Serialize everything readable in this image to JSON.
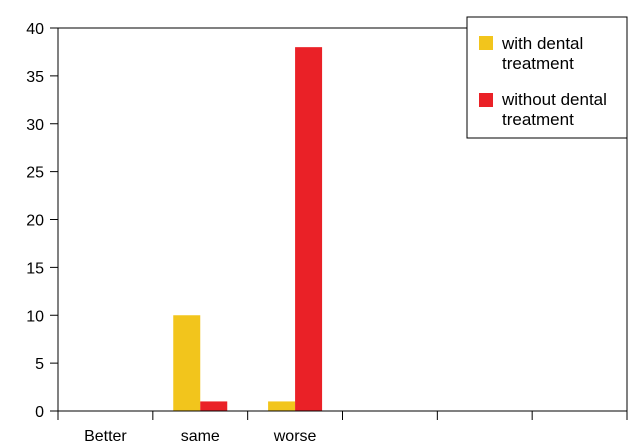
{
  "chart_data": {
    "type": "bar",
    "title": "",
    "xlabel": "",
    "ylabel": "",
    "categories": [
      "Better",
      "same",
      "worse",
      "",
      "",
      ""
    ],
    "series": [
      {
        "name": "with dental treatment",
        "values": [
          0,
          10,
          1,
          null,
          null,
          null
        ],
        "color": "#f2c51c"
      },
      {
        "name": "without dental treatment",
        "values": [
          0,
          1,
          38,
          null,
          null,
          null
        ],
        "color": "#ea2127"
      }
    ],
    "ylim": [
      0,
      40
    ],
    "yticks": [
      0,
      5,
      10,
      15,
      20,
      25,
      30,
      35,
      40
    ],
    "grid": false,
    "legend": {
      "position": "top-right",
      "entries": [
        {
          "line1": "with dental",
          "line2": "treatment"
        },
        {
          "line1": "without dental",
          "line2": "treatment"
        }
      ]
    }
  }
}
